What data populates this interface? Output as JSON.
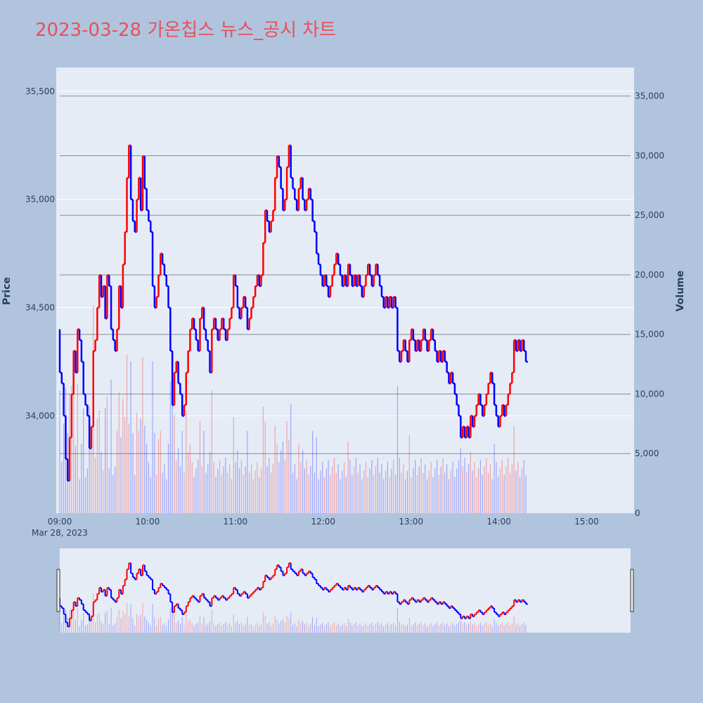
{
  "title": "2023-03-28 가온칩스 뉴스_공시 차트",
  "colors": {
    "up": "#ff0000",
    "down": "#0000ff",
    "background": "#b0c4de",
    "plot_bg": "#e5ecf6",
    "title": "#e8505b"
  },
  "chart_data": {
    "type": "line",
    "title": "2023-03-28 가온칩스 뉴스_공시 차트",
    "xlabel": "",
    "ylabel": "Price",
    "y2label": "Volume",
    "date_label": "Mar 28, 2023",
    "x_tick_labels": [
      "09:00",
      "10:00",
      "11:00",
      "12:00",
      "13:00",
      "14:00",
      "15:00"
    ],
    "x_tick_minutes": [
      0,
      60,
      120,
      180,
      240,
      300,
      360
    ],
    "x_range_minutes": [
      0,
      390
    ],
    "price_ticks": [
      34000,
      34500,
      35000,
      35500
    ],
    "price_tick_labels": [
      "34,000",
      "34,500",
      "35,000",
      "35,500"
    ],
    "price_range": [
      33550,
      35610
    ],
    "volume_ticks": [
      0,
      5000,
      10000,
      15000,
      20000,
      25000,
      30000,
      35000
    ],
    "volume_tick_labels": [
      "0",
      "5,000",
      "10,000",
      "15,000",
      "20,000",
      "25,000",
      "30,000",
      "35,000"
    ],
    "volume_range": [
      0,
      37400
    ],
    "rangeslider": true,
    "series": [
      {
        "name": "Price",
        "points": [
          [
            0,
            34400
          ],
          [
            1,
            34200
          ],
          [
            2,
            34150
          ],
          [
            3,
            34000
          ],
          [
            4,
            33800
          ],
          [
            5,
            33700
          ],
          [
            6,
            33900
          ],
          [
            7,
            34100
          ],
          [
            8,
            34300
          ],
          [
            9,
            34200
          ],
          [
            10,
            34400
          ],
          [
            11,
            34350
          ],
          [
            12,
            34250
          ],
          [
            13,
            34100
          ],
          [
            14,
            34050
          ],
          [
            15,
            34000
          ],
          [
            16,
            33850
          ],
          [
            17,
            33950
          ],
          [
            18,
            34300
          ],
          [
            19,
            34350
          ],
          [
            20,
            34500
          ],
          [
            21,
            34650
          ],
          [
            22,
            34550
          ],
          [
            23,
            34600
          ],
          [
            24,
            34450
          ],
          [
            25,
            34650
          ],
          [
            26,
            34600
          ],
          [
            27,
            34400
          ],
          [
            28,
            34350
          ],
          [
            29,
            34300
          ],
          [
            30,
            34400
          ],
          [
            31,
            34600
          ],
          [
            32,
            34500
          ],
          [
            33,
            34700
          ],
          [
            34,
            34850
          ],
          [
            35,
            35100
          ],
          [
            36,
            35250
          ],
          [
            37,
            35000
          ],
          [
            38,
            34900
          ],
          [
            39,
            34850
          ],
          [
            40,
            35000
          ],
          [
            41,
            35100
          ],
          [
            42,
            34950
          ],
          [
            43,
            35200
          ],
          [
            44,
            35050
          ],
          [
            45,
            34950
          ],
          [
            46,
            34900
          ],
          [
            47,
            34850
          ],
          [
            48,
            34600
          ],
          [
            49,
            34500
          ],
          [
            50,
            34550
          ],
          [
            51,
            34650
          ],
          [
            52,
            34750
          ],
          [
            53,
            34700
          ],
          [
            54,
            34650
          ],
          [
            55,
            34600
          ],
          [
            56,
            34500
          ],
          [
            57,
            34300
          ],
          [
            58,
            34050
          ],
          [
            59,
            34200
          ],
          [
            60,
            34250
          ],
          [
            61,
            34150
          ],
          [
            62,
            34100
          ],
          [
            63,
            34000
          ],
          [
            64,
            34050
          ],
          [
            65,
            34200
          ],
          [
            66,
            34300
          ],
          [
            67,
            34400
          ],
          [
            68,
            34450
          ],
          [
            69,
            34400
          ],
          [
            70,
            34350
          ],
          [
            71,
            34300
          ],
          [
            72,
            34450
          ],
          [
            73,
            34500
          ],
          [
            74,
            34400
          ],
          [
            75,
            34350
          ],
          [
            76,
            34300
          ],
          [
            77,
            34200
          ],
          [
            78,
            34400
          ],
          [
            79,
            34450
          ],
          [
            80,
            34400
          ],
          [
            81,
            34350
          ],
          [
            82,
            34400
          ],
          [
            83,
            34450
          ],
          [
            84,
            34400
          ],
          [
            85,
            34350
          ],
          [
            86,
            34400
          ],
          [
            87,
            34450
          ],
          [
            88,
            34500
          ],
          [
            89,
            34650
          ],
          [
            90,
            34600
          ],
          [
            91,
            34500
          ],
          [
            92,
            34450
          ],
          [
            93,
            34500
          ],
          [
            94,
            34550
          ],
          [
            95,
            34500
          ],
          [
            96,
            34400
          ],
          [
            97,
            34450
          ],
          [
            98,
            34500
          ],
          [
            99,
            34550
          ],
          [
            100,
            34600
          ],
          [
            101,
            34650
          ],
          [
            102,
            34600
          ],
          [
            103,
            34650
          ],
          [
            104,
            34800
          ],
          [
            105,
            34950
          ],
          [
            106,
            34900
          ],
          [
            107,
            34850
          ],
          [
            108,
            34900
          ],
          [
            109,
            34950
          ],
          [
            110,
            35100
          ],
          [
            111,
            35200
          ],
          [
            112,
            35150
          ],
          [
            113,
            35050
          ],
          [
            114,
            34950
          ],
          [
            115,
            35000
          ],
          [
            116,
            35150
          ],
          [
            117,
            35250
          ],
          [
            118,
            35100
          ],
          [
            119,
            35050
          ],
          [
            120,
            35000
          ],
          [
            121,
            34950
          ],
          [
            122,
            35050
          ],
          [
            123,
            35100
          ],
          [
            124,
            35000
          ],
          [
            125,
            34950
          ],
          [
            126,
            35000
          ],
          [
            127,
            35050
          ],
          [
            128,
            35000
          ],
          [
            129,
            34900
          ],
          [
            130,
            34850
          ],
          [
            131,
            34750
          ],
          [
            132,
            34700
          ],
          [
            133,
            34650
          ],
          [
            134,
            34600
          ],
          [
            135,
            34650
          ],
          [
            136,
            34600
          ],
          [
            137,
            34550
          ],
          [
            138,
            34600
          ],
          [
            139,
            34650
          ],
          [
            140,
            34700
          ],
          [
            141,
            34750
          ],
          [
            142,
            34700
          ],
          [
            143,
            34650
          ],
          [
            144,
            34600
          ],
          [
            145,
            34650
          ],
          [
            146,
            34600
          ],
          [
            147,
            34700
          ],
          [
            148,
            34650
          ],
          [
            149,
            34600
          ],
          [
            150,
            34650
          ],
          [
            151,
            34600
          ],
          [
            152,
            34650
          ],
          [
            153,
            34600
          ],
          [
            154,
            34550
          ],
          [
            155,
            34600
          ],
          [
            156,
            34650
          ],
          [
            157,
            34700
          ],
          [
            158,
            34650
          ],
          [
            159,
            34600
          ],
          [
            160,
            34650
          ],
          [
            161,
            34700
          ],
          [
            162,
            34650
          ],
          [
            163,
            34600
          ],
          [
            164,
            34550
          ],
          [
            165,
            34500
          ],
          [
            166,
            34550
          ],
          [
            167,
            34500
          ],
          [
            168,
            34550
          ],
          [
            169,
            34500
          ],
          [
            170,
            34550
          ],
          [
            171,
            34500
          ],
          [
            172,
            34300
          ],
          [
            173,
            34250
          ],
          [
            174,
            34300
          ],
          [
            175,
            34350
          ],
          [
            176,
            34300
          ],
          [
            177,
            34250
          ],
          [
            178,
            34350
          ],
          [
            179,
            34400
          ],
          [
            180,
            34350
          ],
          [
            181,
            34300
          ],
          [
            182,
            34350
          ],
          [
            183,
            34300
          ],
          [
            184,
            34350
          ],
          [
            185,
            34400
          ],
          [
            186,
            34350
          ],
          [
            187,
            34300
          ],
          [
            188,
            34350
          ],
          [
            189,
            34400
          ],
          [
            190,
            34350
          ],
          [
            191,
            34300
          ],
          [
            192,
            34250
          ],
          [
            193,
            34300
          ],
          [
            194,
            34250
          ],
          [
            195,
            34300
          ],
          [
            196,
            34250
          ],
          [
            197,
            34200
          ],
          [
            198,
            34150
          ],
          [
            199,
            34200
          ],
          [
            200,
            34150
          ],
          [
            201,
            34100
          ],
          [
            202,
            34050
          ],
          [
            203,
            34000
          ],
          [
            204,
            33900
          ],
          [
            205,
            33950
          ],
          [
            206,
            33900
          ],
          [
            207,
            33950
          ],
          [
            208,
            33900
          ],
          [
            209,
            34000
          ],
          [
            210,
            33950
          ],
          [
            211,
            34000
          ],
          [
            212,
            34050
          ],
          [
            213,
            34100
          ],
          [
            214,
            34050
          ],
          [
            215,
            34000
          ],
          [
            216,
            34050
          ],
          [
            217,
            34100
          ],
          [
            218,
            34150
          ],
          [
            219,
            34200
          ],
          [
            220,
            34150
          ],
          [
            221,
            34050
          ],
          [
            222,
            34000
          ],
          [
            223,
            33950
          ],
          [
            224,
            34000
          ],
          [
            225,
            34050
          ],
          [
            226,
            34000
          ],
          [
            227,
            34050
          ],
          [
            228,
            34100
          ],
          [
            229,
            34150
          ],
          [
            230,
            34200
          ],
          [
            231,
            34350
          ],
          [
            232,
            34300
          ],
          [
            233,
            34350
          ],
          [
            234,
            34300
          ],
          [
            235,
            34350
          ],
          [
            236,
            34300
          ],
          [
            237,
            34250
          ]
        ]
      }
    ]
  }
}
